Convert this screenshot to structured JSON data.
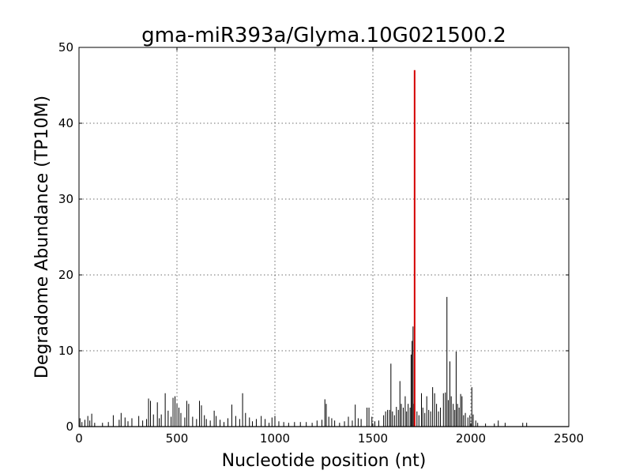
{
  "chart_data": {
    "type": "bar",
    "title": "gma-miR393a/Glyma.10G021500.2",
    "xlabel": "Nucleotide position (nt)",
    "ylabel": "Degradome Abundance (TP10M)",
    "xlim": [
      0,
      2500
    ],
    "ylim": [
      0,
      50
    ],
    "xticks": [
      0,
      500,
      1000,
      1500,
      2000,
      2500
    ],
    "yticks": [
      0,
      10,
      20,
      30,
      40,
      50
    ],
    "grid": true,
    "series": [
      {
        "color": "#000000",
        "points": [
          [
            5,
            1.1
          ],
          [
            15,
            0.6
          ],
          [
            30,
            0.9
          ],
          [
            45,
            1.4
          ],
          [
            55,
            0.8
          ],
          [
            65,
            1.7
          ],
          [
            80,
            0.5
          ],
          [
            120,
            0.5
          ],
          [
            150,
            0.6
          ],
          [
            175,
            1.5
          ],
          [
            205,
            0.9
          ],
          [
            215,
            1.8
          ],
          [
            235,
            1.2
          ],
          [
            250,
            0.7
          ],
          [
            270,
            1.1
          ],
          [
            305,
            1.4
          ],
          [
            325,
            0.8
          ],
          [
            345,
            1.0
          ],
          [
            355,
            3.7
          ],
          [
            365,
            3.4
          ],
          [
            380,
            1.6
          ],
          [
            400,
            3.2
          ],
          [
            410,
            1.1
          ],
          [
            420,
            1.6
          ],
          [
            440,
            4.4
          ],
          [
            455,
            2.1
          ],
          [
            470,
            1.3
          ],
          [
            480,
            3.8
          ],
          [
            490,
            4.0
          ],
          [
            500,
            3.0
          ],
          [
            510,
            2.5
          ],
          [
            520,
            1.8
          ],
          [
            540,
            1.2
          ],
          [
            550,
            3.4
          ],
          [
            560,
            3.0
          ],
          [
            580,
            1.3
          ],
          [
            600,
            1.0
          ],
          [
            615,
            3.4
          ],
          [
            625,
            2.8
          ],
          [
            640,
            1.5
          ],
          [
            650,
            1.0
          ],
          [
            670,
            0.8
          ],
          [
            690,
            2.1
          ],
          [
            700,
            1.4
          ],
          [
            720,
            0.9
          ],
          [
            740,
            0.6
          ],
          [
            760,
            1.1
          ],
          [
            780,
            2.9
          ],
          [
            800,
            1.4
          ],
          [
            820,
            1.0
          ],
          [
            835,
            4.4
          ],
          [
            850,
            1.8
          ],
          [
            870,
            1.2
          ],
          [
            885,
            0.7
          ],
          [
            905,
            1.0
          ],
          [
            930,
            1.4
          ],
          [
            950,
            1.0
          ],
          [
            970,
            0.5
          ],
          [
            985,
            1.2
          ],
          [
            1000,
            1.4
          ],
          [
            1020,
            0.7
          ],
          [
            1045,
            0.6
          ],
          [
            1070,
            0.5
          ],
          [
            1100,
            0.6
          ],
          [
            1130,
            0.6
          ],
          [
            1160,
            0.6
          ],
          [
            1190,
            0.5
          ],
          [
            1215,
            0.8
          ],
          [
            1240,
            0.9
          ],
          [
            1255,
            3.6
          ],
          [
            1262,
            3.0
          ],
          [
            1275,
            1.3
          ],
          [
            1290,
            1.1
          ],
          [
            1305,
            0.8
          ],
          [
            1330,
            0.5
          ],
          [
            1355,
            0.7
          ],
          [
            1375,
            1.3
          ],
          [
            1395,
            0.8
          ],
          [
            1410,
            2.9
          ],
          [
            1425,
            1.1
          ],
          [
            1440,
            1.0
          ],
          [
            1470,
            2.5
          ],
          [
            1480,
            2.5
          ],
          [
            1495,
            1.3
          ],
          [
            1510,
            0.7
          ],
          [
            1530,
            0.8
          ],
          [
            1555,
            1.5
          ],
          [
            1565,
            2.0
          ],
          [
            1575,
            2.2
          ],
          [
            1585,
            2.2
          ],
          [
            1592,
            8.3
          ],
          [
            1600,
            2.0
          ],
          [
            1610,
            1.5
          ],
          [
            1620,
            2.6
          ],
          [
            1630,
            2.2
          ],
          [
            1638,
            6.0
          ],
          [
            1645,
            3.0
          ],
          [
            1655,
            2.5
          ],
          [
            1665,
            4.0
          ],
          [
            1672,
            2.0
          ],
          [
            1680,
            3.0
          ],
          [
            1690,
            2.5
          ],
          [
            1695,
            9.5
          ],
          [
            1700,
            11.3
          ],
          [
            1705,
            13.2
          ],
          [
            1710,
            3.0
          ],
          [
            1725,
            2.0
          ],
          [
            1735,
            1.5
          ],
          [
            1748,
            4.4
          ],
          [
            1755,
            2.5
          ],
          [
            1765,
            1.8
          ],
          [
            1775,
            4.0
          ],
          [
            1785,
            2.2
          ],
          [
            1795,
            2.0
          ],
          [
            1805,
            5.2
          ],
          [
            1815,
            4.4
          ],
          [
            1825,
            3.0
          ],
          [
            1835,
            2.0
          ],
          [
            1845,
            2.5
          ],
          [
            1860,
            4.4
          ],
          [
            1870,
            4.5
          ],
          [
            1878,
            17.1
          ],
          [
            1885,
            3.5
          ],
          [
            1893,
            8.6
          ],
          [
            1900,
            4.0
          ],
          [
            1910,
            3.0
          ],
          [
            1918,
            2.2
          ],
          [
            1925,
            9.9
          ],
          [
            1932,
            3.0
          ],
          [
            1940,
            2.5
          ],
          [
            1948,
            4.3
          ],
          [
            1955,
            4.0
          ],
          [
            1963,
            1.5
          ],
          [
            1972,
            1.8
          ],
          [
            1985,
            1.2
          ],
          [
            1995,
            1.5
          ],
          [
            2005,
            5.2
          ],
          [
            2012,
            1.6
          ],
          [
            2025,
            0.8
          ],
          [
            2035,
            0.5
          ],
          [
            2075,
            0.4
          ],
          [
            2120,
            0.4
          ],
          [
            2140,
            0.8
          ],
          [
            2175,
            0.5
          ],
          [
            2265,
            0.5
          ],
          [
            2285,
            0.5
          ]
        ]
      },
      {
        "color": "#d40000",
        "points": [
          [
            1713,
            47.0
          ]
        ]
      }
    ]
  }
}
